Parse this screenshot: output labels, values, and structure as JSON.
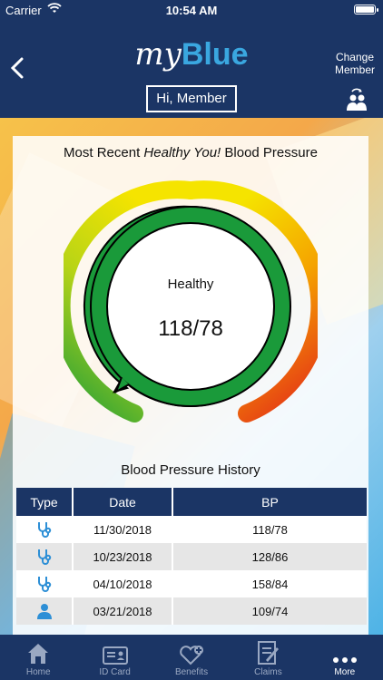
{
  "status": {
    "carrier": "Carrier",
    "time": "10:54 AM"
  },
  "header": {
    "logo_my": "my",
    "logo_blue": "Blue",
    "change_member": "Change Member",
    "greeting": "Hi, Member"
  },
  "card": {
    "title_prefix": "Most Recent ",
    "title_italic": "Healthy You!",
    "title_suffix": " Blood Pressure",
    "gauge_status": "Healthy",
    "gauge_reading": "118/78",
    "history_title": "Blood Pressure History"
  },
  "table": {
    "headers": [
      "Type",
      "Date",
      "BP"
    ],
    "rows": [
      {
        "type_icon": "stethoscope-icon",
        "date": "11/30/2018",
        "bp": "118/78"
      },
      {
        "type_icon": "stethoscope-icon",
        "date": "10/23/2018",
        "bp": "128/86"
      },
      {
        "type_icon": "stethoscope-icon",
        "date": "04/10/2018",
        "bp": "158/84"
      },
      {
        "type_icon": "person-icon",
        "date": "03/21/2018",
        "bp": "109/74"
      }
    ]
  },
  "tabs": [
    {
      "label": "Home",
      "icon": "home-icon"
    },
    {
      "label": "ID Card",
      "icon": "id-card-icon"
    },
    {
      "label": "Benefits",
      "icon": "benefits-heart-icon"
    },
    {
      "label": "Claims",
      "icon": "claims-document-icon"
    },
    {
      "label": "More",
      "icon": "more-dots-icon"
    }
  ],
  "colors": {
    "navy": "#1b3565",
    "accent_blue": "#3aa7e0",
    "healthy_green": "#1a9a3a",
    "gauge_gradient": [
      "#1f9d3a",
      "#b8d416",
      "#f5e400",
      "#f5a300",
      "#e2231a"
    ]
  }
}
